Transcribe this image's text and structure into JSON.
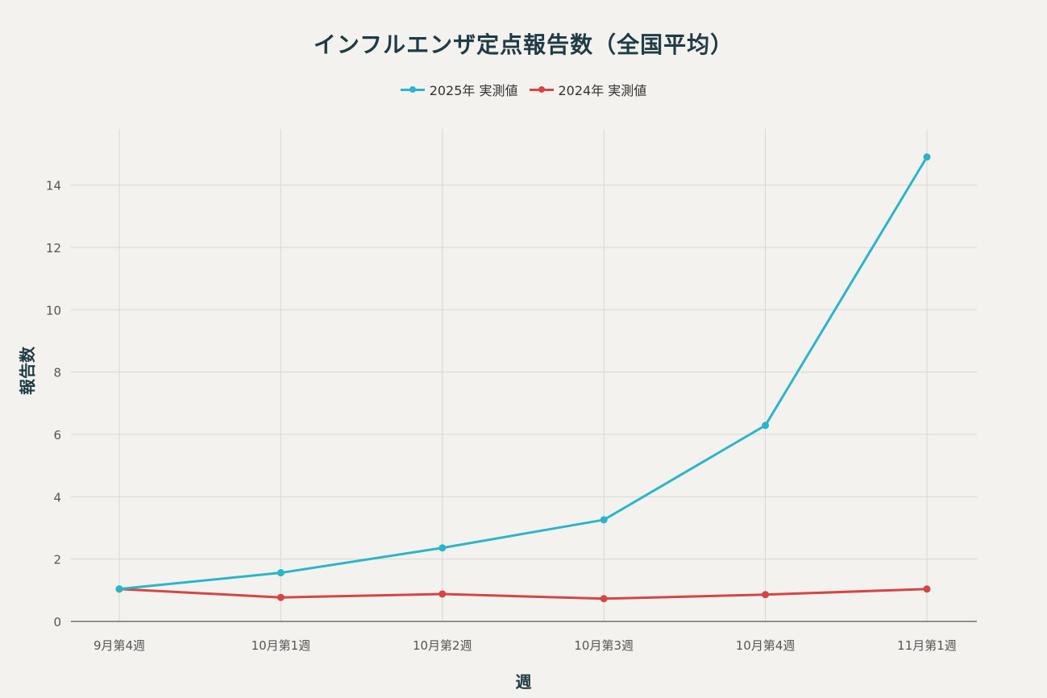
{
  "chart_data": {
    "type": "line",
    "title": "インフルエンザ定点報告数（全国平均）",
    "xlabel": "週",
    "ylabel": "報告数",
    "categories": [
      "9月第4週",
      "10月第1週",
      "10月第2週",
      "10月第3週",
      "10月第4週",
      "11月第1週"
    ],
    "series": [
      {
        "name": "2025年 実測値",
        "color": "#2bb5c9",
        "values": [
          1.04,
          1.56,
          2.36,
          3.26,
          6.29,
          14.9
        ]
      },
      {
        "name": "2024年 実測値",
        "color": "#d64545",
        "values": [
          1.04,
          0.77,
          0.88,
          0.73,
          0.86,
          1.04
        ]
      }
    ],
    "ylim": [
      0,
      15.8
    ],
    "yticks": [
      0,
      2,
      4,
      6,
      8,
      10,
      12,
      14
    ],
    "grid": true,
    "legend_position": "top-center"
  }
}
